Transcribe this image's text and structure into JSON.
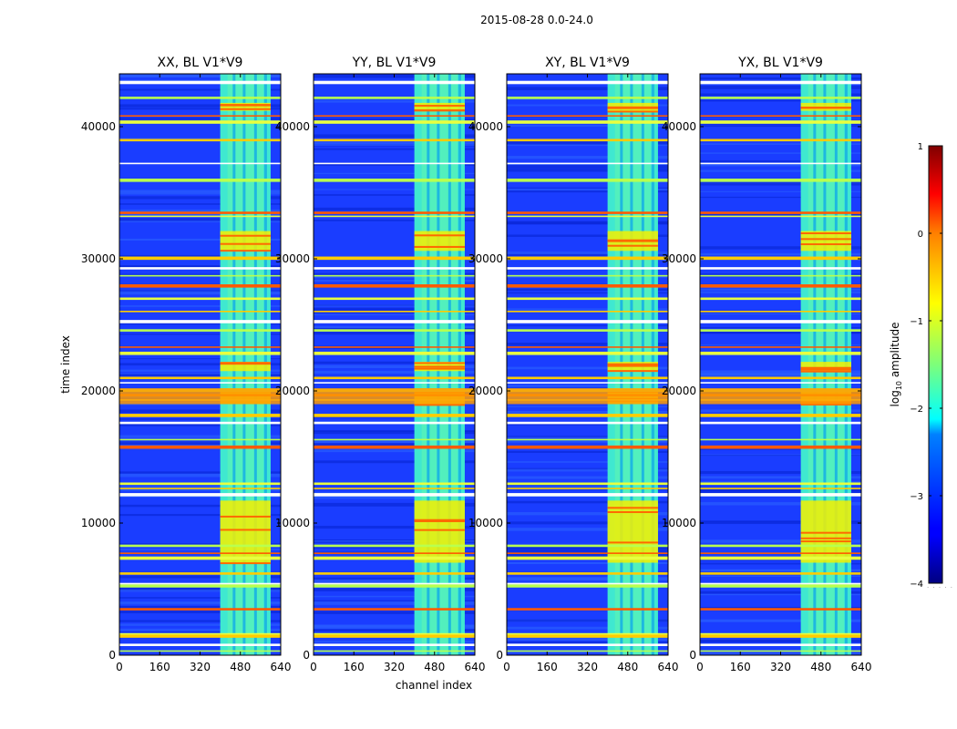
{
  "chart_data": {
    "type": "heatmap",
    "suptitle": "2015-08-28 0.0-24.0",
    "xlabel": "channel index",
    "ylabel": "time index",
    "xlim": [
      0,
      640
    ],
    "ylim": [
      0,
      44000
    ],
    "x_ticks": [
      0,
      160,
      320,
      480,
      640
    ],
    "y_ticks": [
      0,
      10000,
      20000,
      30000,
      40000
    ],
    "panels": [
      {
        "title": "XX, BL V1*V9"
      },
      {
        "title": "YY, BL V1*V9"
      },
      {
        "title": "XY, BL V1*V9"
      },
      {
        "title": "YX, BL V1*V9"
      }
    ],
    "colorbar": {
      "label_prefix": "log",
      "label_sub": "10",
      "label_suffix": " amplitude",
      "range": [
        -4,
        1
      ],
      "ticks": [
        1,
        0,
        -1,
        -2,
        -3,
        -4
      ],
      "tick_labels": [
        "1",
        "0",
        "−1",
        "−2",
        "−3",
        "−4"
      ],
      "colormap": "jet"
    },
    "rfi_channel_band": [
      400,
      600
    ],
    "rfi_subband_gaps": [
      455,
      495,
      540,
      580
    ],
    "high_amplitude_time_ranges": [
      [
        19000,
        20200
      ],
      [
        21500,
        22200
      ],
      [
        30600,
        32100
      ],
      [
        41200,
        41800
      ],
      [
        7000,
        11700
      ]
    ],
    "bright_horizontal_lines": [
      300,
      800,
      1500,
      1600,
      3500,
      5300,
      5400,
      6200,
      7400,
      7700,
      8300,
      12200,
      12600,
      13000,
      15800,
      16300,
      17600,
      18200,
      19300,
      19700,
      20100,
      20600,
      21000,
      22900,
      23300,
      24600,
      25300,
      26000,
      27000,
      28000,
      28700,
      29300,
      30100,
      33200,
      33500,
      36000,
      37200,
      39000,
      40400,
      40800,
      42200,
      43400
    ]
  }
}
